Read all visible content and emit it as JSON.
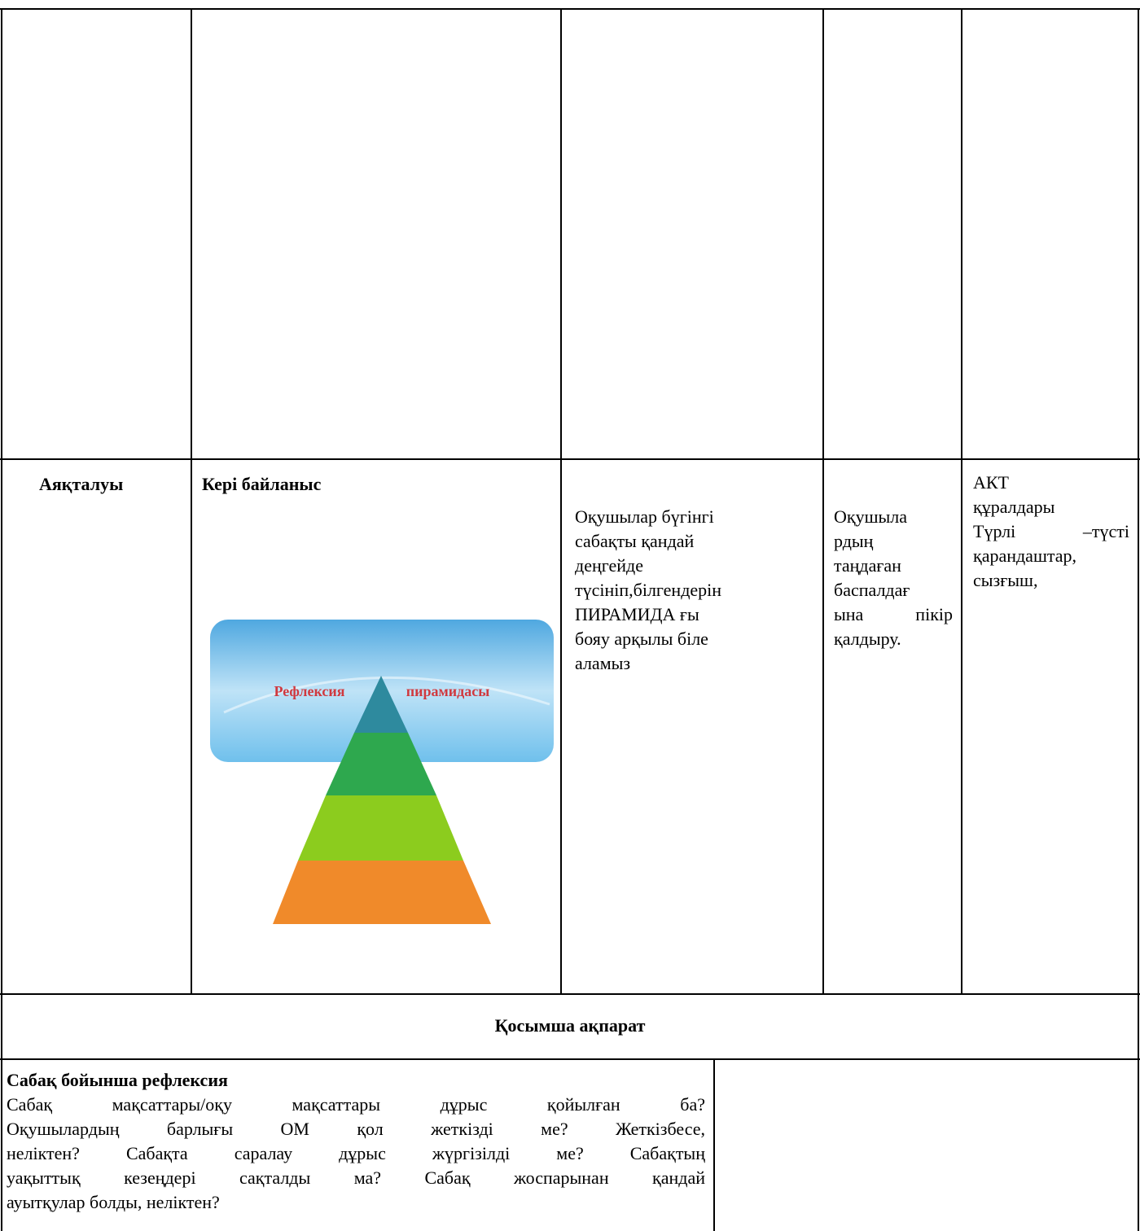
{
  "table": {
    "rows": [
      {
        "cells": [
          {
            "title": "Аяқталуы"
          },
          {
            "title": "Кері байланыс",
            "image": {
              "left_text": "Рефлексия",
              "right_text": "пирамидасы"
            }
          },
          {
            "lines": [
              "Оқушылар бүгінгі",
              "сабақты қандай",
              "деңгейде",
              "түсініп,білгендерін",
              "ПИРАМИДА ғы",
              "бояу арқылы біле",
              "аламыз"
            ]
          },
          {
            "lines": [
              "Оқушыла",
              "рдың",
              "таңдаған",
              "баспалдағ",
              "ына пікір",
              "қалдыру."
            ]
          },
          {
            "lines": [
              "АКТ",
              "құралдары",
              "Түрлі –түсті",
              "қарандаштар,",
              "сызғыш,"
            ]
          }
        ]
      }
    ],
    "section_header": "Қосымша ақпарат",
    "reflection": {
      "title": "Сабақ бойынша рефлексия",
      "lines": [
        "Сабақ мақсаттары/оқу мақсаттары дұрыс қойылған ба?",
        "Оқушылардың барлығы ОМ қол жеткізді ме? Жеткізбесе,",
        "неліктен? Сабақта саралау дұрыс жүргізілді ме? Сабақтың",
        "уақыттық кезеңдері сақталды ма? Сабақ жоспарынан қандай",
        "ауытқулар болды, неліктен?"
      ]
    }
  }
}
